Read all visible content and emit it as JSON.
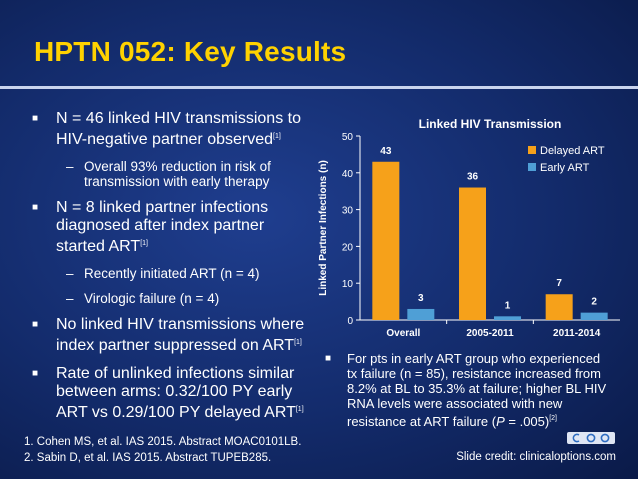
{
  "slide": {
    "title": "HPTN 052: Key Results",
    "bullets": [
      {
        "text": "N = 46 linked HIV transmissions to HIV-negative partner observed",
        "ref": "[1]"
      },
      {
        "sub": "Overall 93% reduction in risk of transmission with early therapy"
      },
      {
        "text": "N = 8 linked partner infections diagnosed after index partner started ART",
        "ref": "[1]"
      },
      {
        "sub": "Recently initiated ART (n = 4)"
      },
      {
        "sub": "Virologic failure (n = 4)"
      },
      {
        "text": "No linked HIV transmissions where index partner suppressed on ART",
        "ref": "[1]"
      },
      {
        "text": "Rate of unlinked infections similar between arms: 0.32/100 PY early ART vs 0.29/100 PY delayed ART",
        "ref": "[1]"
      }
    ],
    "chart_note_a": "For pts in early ART group who experienced tx failure (n = 85), resistance increased from 8.2% at BL to 35.3% at failure; higher BL HIV RNA levels were associated with new resistance at ART failure (",
    "chart_note_p": "P",
    "chart_note_b": " = .005)",
    "chart_note_ref": "[2]",
    "footnotes": [
      "1. Cohen MS, et al. IAS 2015. Abstract MOAC0101LB.",
      "2. Sabin D, et al. IAS 2015. Abstract TUPEB285."
    ],
    "credit": "Slide credit: clinicaloptions.com"
  },
  "colors": {
    "title": "#ffd200",
    "delayed": "#f6a11a",
    "early": "#4f9fd6"
  },
  "chart_data": {
    "type": "bar",
    "title": "Linked HIV Transmission",
    "ylabel": "Linked Partner Infections (n)",
    "xlabel": "",
    "categories": [
      "Overall",
      "2005-2011",
      "2011-2014"
    ],
    "series": [
      {
        "name": "Delayed ART",
        "values": [
          43,
          36,
          7
        ]
      },
      {
        "name": "Early ART",
        "values": [
          3,
          1,
          2
        ]
      }
    ],
    "ylim": [
      0,
      50
    ],
    "yticks": [
      0,
      10,
      20,
      30,
      40,
      50
    ],
    "legend": "top-right",
    "grid": false
  }
}
